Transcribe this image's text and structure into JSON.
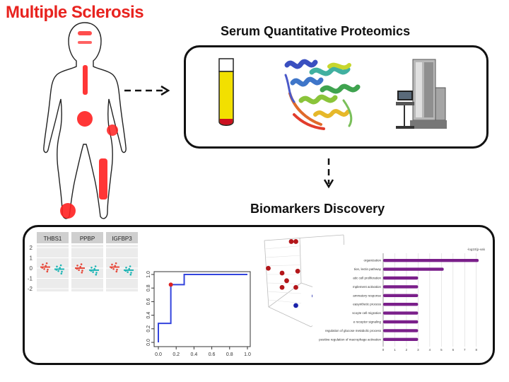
{
  "titles": {
    "disease": "Multiple Sclerosis",
    "serum": "Serum Quantitative Proteomics",
    "biomarkers": "Biomarkers Discovery"
  },
  "colors": {
    "disease_title": "#e8231f",
    "lesion": "#ff2020",
    "tube_fill": "#f2e000",
    "tube_blood": "#cc1020",
    "series_red": "#e64a3c",
    "series_teal": "#1fb5b5",
    "roc_line": "#3344dd",
    "pca_red": "#b3161a",
    "pca_blue": "#1a22aa",
    "bar_purple": "#7a1f8a"
  },
  "icons": {
    "body": "human-body-silhouette-icon",
    "tube": "blood-tube-icon",
    "protein": "protein-ribbon-icon",
    "mass_spec": "mass-spectrometer-icon"
  },
  "chart_data": [
    {
      "type": "scatter",
      "panels": [
        "THBS1",
        "PPBP",
        "IGFBP3"
      ],
      "y_ticks": [
        "2",
        "1",
        "0",
        "-1",
        "-2"
      ],
      "ylim": [
        -2,
        2
      ],
      "series": [
        {
          "values": [
            0.1,
            0.0,
            0.1
          ]
        },
        {
          "values": [
            -0.1,
            -0.2,
            -0.2
          ]
        }
      ]
    },
    {
      "type": "line",
      "x_ticks": [
        "0.0",
        "0.2",
        "0.4",
        "0.6",
        "0.8",
        "1.0"
      ],
      "y_ticks": [
        "0.0",
        "0.2",
        "0.4",
        "0.6",
        "0.8",
        "1.0"
      ],
      "xlim": [
        0,
        1
      ],
      "ylim": [
        0,
        1
      ],
      "points": [
        [
          0,
          0
        ],
        [
          0,
          0.28
        ],
        [
          0.14,
          0.28
        ],
        [
          0.14,
          0.85
        ],
        [
          0.29,
          0.85
        ],
        [
          0.29,
          1.0
        ],
        [
          1.0,
          1.0
        ]
      ],
      "highlight": [
        0.14,
        0.85
      ]
    },
    {
      "type": "scatter",
      "series": [
        {
          "points": [
            [
              0.4,
              0.93
            ],
            [
              0.45,
              0.93
            ],
            [
              0.15,
              0.65
            ],
            [
              0.3,
              0.6
            ],
            [
              0.47,
              0.62
            ],
            [
              0.35,
              0.52
            ],
            [
              0.3,
              0.45
            ],
            [
              0.45,
              0.45
            ]
          ]
        },
        {
          "points": [
            [
              0.75,
              0.78
            ],
            [
              0.8,
              0.67
            ],
            [
              0.85,
              0.63
            ],
            [
              0.7,
              0.62
            ],
            [
              0.65,
              0.36
            ],
            [
              0.45,
              0.26
            ]
          ]
        }
      ]
    },
    {
      "type": "bar",
      "header": "-log10(p-value)",
      "categories": [
        "organization",
        "tion, lectin pathway",
        "atic cell proliferation",
        "mplement activation",
        "ammatory response",
        "easynthetic process",
        "scoyte cell migration",
        "e receptor signaling",
        "regulation of glucose metabolic process",
        "positive regulation of macrophage activation"
      ],
      "values": [
        8.2,
        5.2,
        3.0,
        3.0,
        3.0,
        3.0,
        3.0,
        3.0,
        3.0,
        3.0
      ],
      "x_ticks": [
        "0",
        "1",
        "2",
        "3",
        "4",
        "5",
        "6",
        "7",
        "8"
      ],
      "xlim": [
        0,
        8.5
      ]
    }
  ]
}
